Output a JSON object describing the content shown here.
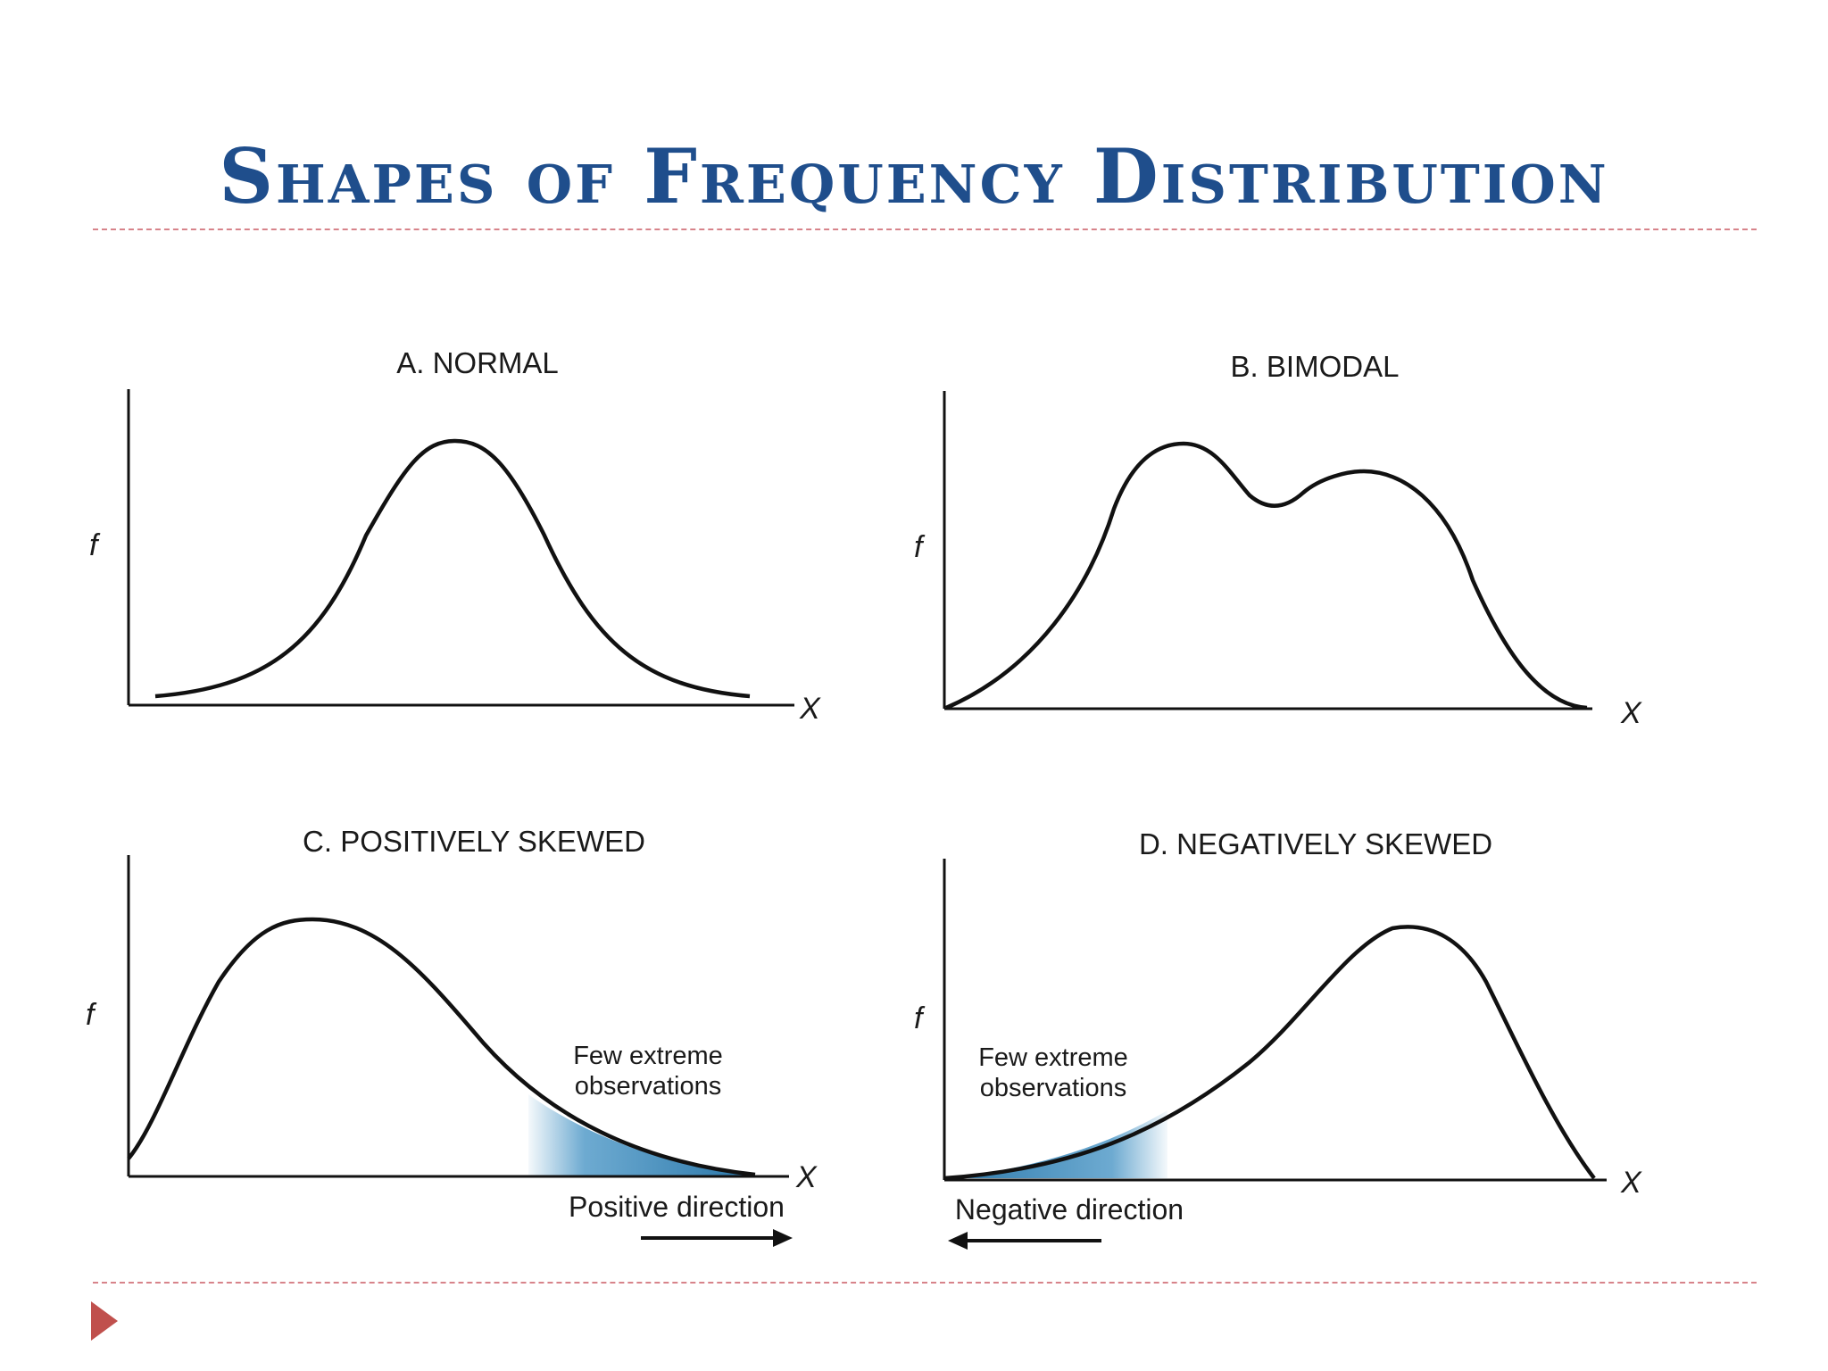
{
  "slide": {
    "title": "Shapes of Frequency Distribution"
  },
  "panels": [
    {
      "title": "A. NORMAL",
      "y_label": "f",
      "x_label": "X"
    },
    {
      "title": "B. BIMODAL",
      "y_label": "f",
      "x_label": "X"
    },
    {
      "title": "C. POSITIVELY SKEWED",
      "y_label": "f",
      "x_label": "X",
      "note_line1": "Few extreme",
      "note_line2": "observations",
      "direction_label": "Positive direction"
    },
    {
      "title": "D. NEGATIVELY SKEWED",
      "y_label": "f",
      "x_label": "X",
      "note_line1": "Few extreme",
      "note_line2": "observations",
      "direction_label": "Negative direction"
    }
  ],
  "colors": {
    "title": "#1f4e8c",
    "rule": "#d7838a",
    "bullet": "#c0504d",
    "tail_shade": "#2f86bd",
    "curve": "#111111"
  },
  "icons": {
    "bullet": "triangle-bullet-icon"
  }
}
